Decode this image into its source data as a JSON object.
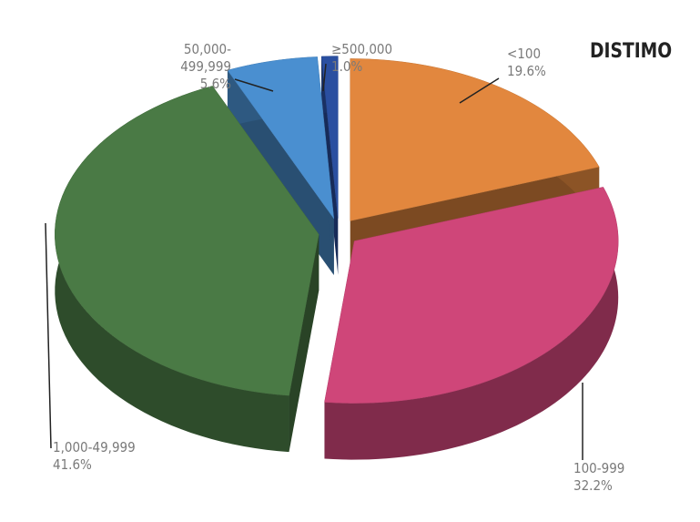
{
  "chart_data": {
    "type": "pie",
    "logo": "DISTIMO",
    "categories": [
      "<100",
      "100-999",
      "1,000-49,999",
      "50,000-499,999",
      "≥500,000"
    ],
    "values": [
      19.6,
      32.2,
      41.6,
      5.6,
      1.0
    ],
    "value_labels": [
      "19.6%",
      "32.2%",
      "41.6%",
      "5.6%",
      "1.0%"
    ],
    "colors": [
      "#e2873e",
      "#cf4679",
      "#4a7a45",
      "#4a8fd0",
      "#2a4fa0"
    ]
  }
}
